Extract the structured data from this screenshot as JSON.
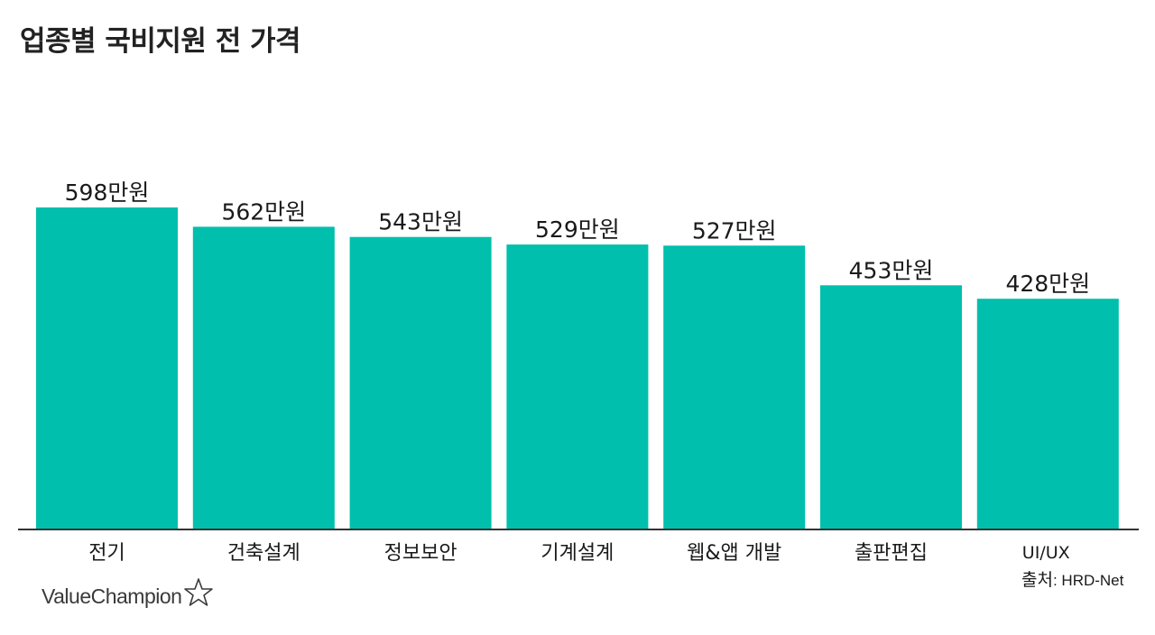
{
  "chart_data": {
    "type": "bar",
    "title": "업종별 국비지원 전 가격",
    "categories": [
      "전기",
      "건축설계",
      "정보보안",
      "기계설계",
      "웹&앱 개발",
      "출판편집",
      "UI/UX"
    ],
    "values": [
      598,
      562,
      543,
      529,
      527,
      453,
      428
    ],
    "value_labels": [
      "598만원",
      "562만원",
      "543만원",
      "529만원",
      "527만원",
      "453만원",
      "428만원"
    ],
    "xlabel": "",
    "ylabel": "",
    "ylim": [
      0,
      598
    ],
    "grid": false,
    "legend": "none",
    "bar_color": "#00bfad",
    "axis_color": "#333333"
  },
  "source": {
    "prefix": "출처",
    "name": ": HRD-Net"
  },
  "logo": {
    "text": "ValueChampion",
    "icon": "star-outline-icon"
  }
}
